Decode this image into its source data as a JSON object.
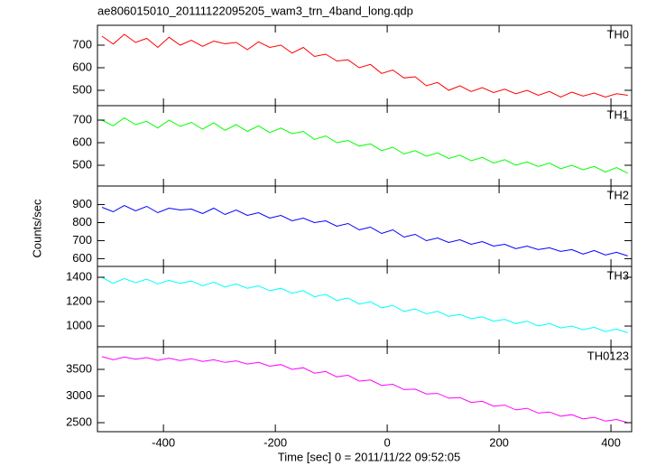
{
  "title": "ae806015010_20111122095205_wam3_trn_4band_long.qdp",
  "ylabel": "Counts/sec",
  "xlabel": "Time [sec] 0 = 2011/11/22 09:52:05",
  "chart_data": [
    {
      "type": "line",
      "series": [
        {
          "name": "TH0",
          "color": "#ff0000",
          "values": [
            740,
            705,
            748,
            712,
            730,
            690,
            735,
            700,
            722,
            695,
            718,
            706,
            712,
            680,
            715,
            690,
            700,
            665,
            690,
            650,
            660,
            630,
            635,
            600,
            615,
            575,
            590,
            555,
            560,
            520,
            535,
            500,
            520,
            495,
            512,
            490,
            505,
            485,
            500,
            478,
            495,
            470,
            492,
            475,
            488,
            470,
            485,
            478
          ]
        }
      ],
      "x": [
        -510,
        -490,
        -470,
        -450,
        -430,
        -410,
        -390,
        -370,
        -350,
        -330,
        -310,
        -290,
        -270,
        -250,
        -230,
        -210,
        -190,
        -170,
        -150,
        -130,
        -110,
        -90,
        -70,
        -50,
        -30,
        -10,
        10,
        30,
        50,
        70,
        90,
        110,
        130,
        150,
        170,
        190,
        210,
        230,
        250,
        270,
        290,
        310,
        330,
        350,
        370,
        390,
        410,
        430
      ],
      "xlim": [
        -518,
        437
      ],
      "ylim": [
        432,
        788
      ],
      "yticks": [
        500,
        600,
        700
      ]
    },
    {
      "type": "line",
      "series": [
        {
          "name": "TH1",
          "color": "#00ff00",
          "values": [
            700,
            675,
            710,
            680,
            695,
            665,
            700,
            672,
            690,
            660,
            688,
            655,
            680,
            650,
            675,
            645,
            665,
            640,
            650,
            615,
            630,
            600,
            610,
            585,
            595,
            565,
            580,
            550,
            565,
            540,
            555,
            530,
            545,
            520,
            535,
            510,
            525,
            500,
            515,
            495,
            510,
            485,
            500,
            480,
            495,
            470,
            490,
            465
          ]
        }
      ],
      "x": [
        -510,
        -490,
        -470,
        -450,
        -430,
        -410,
        -390,
        -370,
        -350,
        -330,
        -310,
        -290,
        -270,
        -250,
        -230,
        -210,
        -190,
        -170,
        -150,
        -130,
        -110,
        -90,
        -70,
        -50,
        -30,
        -10,
        10,
        30,
        50,
        70,
        90,
        110,
        130,
        150,
        170,
        190,
        210,
        230,
        250,
        270,
        290,
        310,
        330,
        350,
        370,
        390,
        410,
        430
      ],
      "xlim": [
        -518,
        437
      ],
      "ylim": [
        408,
        764
      ],
      "yticks": [
        500,
        600,
        700
      ]
    },
    {
      "type": "line",
      "series": [
        {
          "name": "TH2",
          "color": "#0000ff",
          "values": [
            885,
            860,
            895,
            865,
            890,
            855,
            880,
            870,
            875,
            850,
            880,
            845,
            870,
            840,
            855,
            825,
            840,
            810,
            825,
            800,
            810,
            780,
            795,
            760,
            775,
            740,
            760,
            720,
            735,
            700,
            715,
            690,
            705,
            680,
            695,
            670,
            680,
            655,
            670,
            650,
            660,
            640,
            650,
            625,
            645,
            620,
            635,
            615
          ]
        }
      ],
      "x": [
        -510,
        -490,
        -470,
        -450,
        -430,
        -410,
        -390,
        -370,
        -350,
        -330,
        -310,
        -290,
        -270,
        -250,
        -230,
        -210,
        -190,
        -170,
        -150,
        -130,
        -110,
        -90,
        -70,
        -50,
        -30,
        -10,
        10,
        30,
        50,
        70,
        90,
        110,
        130,
        150,
        170,
        190,
        210,
        230,
        250,
        270,
        290,
        310,
        330,
        350,
        370,
        390,
        410,
        430
      ],
      "xlim": [
        -518,
        437
      ],
      "ylim": [
        557,
        1003
      ],
      "yticks": [
        600,
        700,
        800,
        900
      ]
    },
    {
      "type": "line",
      "series": [
        {
          "name": "TH3",
          "color": "#00ffff",
          "values": [
            1400,
            1350,
            1390,
            1355,
            1385,
            1345,
            1375,
            1350,
            1370,
            1330,
            1360,
            1320,
            1345,
            1310,
            1330,
            1290,
            1310,
            1270,
            1290,
            1240,
            1260,
            1210,
            1230,
            1180,
            1200,
            1150,
            1170,
            1120,
            1140,
            1100,
            1120,
            1080,
            1095,
            1060,
            1075,
            1040,
            1055,
            1020,
            1040,
            1000,
            1020,
            985,
            1000,
            970,
            990,
            955,
            975,
            945
          ]
        }
      ],
      "x": [
        -510,
        -490,
        -470,
        -450,
        -430,
        -410,
        -390,
        -370,
        -350,
        -330,
        -310,
        -290,
        -270,
        -250,
        -230,
        -210,
        -190,
        -170,
        -150,
        -130,
        -110,
        -90,
        -70,
        -50,
        -30,
        -10,
        10,
        30,
        50,
        70,
        90,
        110,
        130,
        150,
        170,
        190,
        210,
        230,
        250,
        270,
        290,
        310,
        330,
        350,
        370,
        390,
        410,
        430
      ],
      "xlim": [
        -518,
        437
      ],
      "ylim": [
        830,
        1489
      ],
      "yticks": [
        1000,
        1200,
        1400
      ]
    },
    {
      "type": "line",
      "series": [
        {
          "name": "TH0123",
          "color": "#ff00ff",
          "values": [
            3740,
            3680,
            3730,
            3690,
            3720,
            3670,
            3710,
            3665,
            3700,
            3650,
            3680,
            3630,
            3660,
            3600,
            3630,
            3560,
            3590,
            3500,
            3530,
            3430,
            3460,
            3360,
            3390,
            3280,
            3300,
            3200,
            3220,
            3120,
            3130,
            3040,
            3050,
            2960,
            2970,
            2880,
            2900,
            2810,
            2830,
            2740,
            2770,
            2680,
            2700,
            2620,
            2650,
            2570,
            2600,
            2530,
            2560,
            2500
          ]
        }
      ],
      "x": [
        -510,
        -490,
        -470,
        -450,
        -430,
        -410,
        -390,
        -370,
        -350,
        -330,
        -310,
        -290,
        -270,
        -250,
        -230,
        -210,
        -190,
        -170,
        -150,
        -130,
        -110,
        -90,
        -70,
        -50,
        -30,
        -10,
        10,
        30,
        50,
        70,
        90,
        110,
        130,
        150,
        170,
        190,
        210,
        230,
        250,
        270,
        290,
        310,
        330,
        350,
        370,
        390,
        410,
        430
      ],
      "xlim": [
        -518,
        437
      ],
      "ylim": [
        2331,
        3924
      ],
      "yticks": [
        2500,
        3000,
        3500
      ],
      "xticks": [
        -400,
        -200,
        0,
        200,
        400
      ]
    }
  ]
}
